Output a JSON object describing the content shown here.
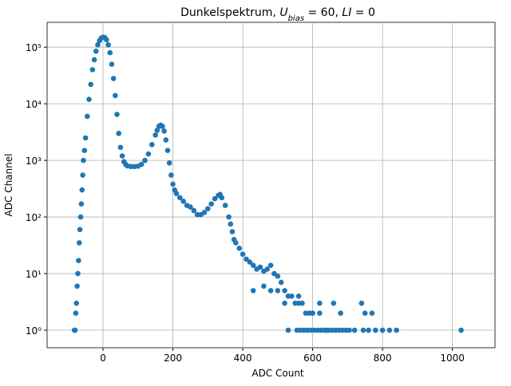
{
  "chart_data": {
    "type": "scatter",
    "title": [
      "Dunkelspektrum, ",
      "U",
      "bias",
      " = 60, ",
      "LI",
      " = 0"
    ],
    "x_label": "ADC Count",
    "y_label": "ADC Channel",
    "color": "#1f77b4",
    "grid": true,
    "y_log": true,
    "xlim": [
      -160,
      1122
    ],
    "ylim": [
      0.49,
      275000
    ],
    "xticks": [
      0,
      200,
      400,
      600,
      800,
      1000
    ],
    "yticks": [
      {
        "value": 1,
        "label": "10⁰"
      },
      {
        "value": 10,
        "label": "10¹"
      },
      {
        "value": 100,
        "label": "10²"
      },
      {
        "value": 1000,
        "label": "10³"
      },
      {
        "value": 10000,
        "label": "10⁴"
      },
      {
        "value": 100000,
        "label": "10⁵"
      }
    ],
    "series": [
      {
        "name": "ADC Channel",
        "x": [
          -82,
          -80,
          -78,
          -76,
          -74,
          -72,
          -70,
          -68,
          -66,
          -64,
          -62,
          -60,
          -58,
          -56,
          -53,
          -50,
          -45,
          -40,
          -35,
          -30,
          -25,
          -20,
          -15,
          -10,
          -5,
          0,
          5,
          10,
          15,
          20,
          25,
          30,
          35,
          40,
          45,
          50,
          55,
          60,
          65,
          70,
          80,
          90,
          100,
          110,
          120,
          130,
          140,
          150,
          155,
          160,
          165,
          170,
          175,
          180,
          185,
          190,
          195,
          200,
          205,
          210,
          220,
          230,
          240,
          250,
          260,
          270,
          280,
          290,
          300,
          310,
          320,
          330,
          335,
          340,
          350,
          360,
          365,
          370,
          375,
          380,
          390,
          400,
          410,
          420,
          430,
          440,
          450,
          460,
          470,
          480,
          490,
          500,
          510,
          520,
          530,
          540,
          550,
          560,
          570,
          580,
          590,
          600,
          620,
          640,
          430,
          460,
          480,
          500,
          520,
          560,
          620,
          660,
          680,
          740,
          750,
          770,
          530,
          555,
          565,
          575,
          585,
          595,
          605,
          615,
          625,
          635,
          645,
          655,
          665,
          675,
          685,
          695,
          705,
          720,
          745,
          760,
          780,
          800,
          820,
          840,
          1025
        ],
        "values": [
          1,
          1,
          2,
          3,
          6,
          10,
          17,
          35,
          60,
          100,
          170,
          300,
          550,
          1000,
          1500,
          2500,
          6000,
          12000,
          22000,
          40000,
          60000,
          85000,
          110000,
          130000,
          145000,
          150000,
          148000,
          135000,
          110000,
          80000,
          50000,
          28000,
          14000,
          6500,
          3000,
          1700,
          1200,
          950,
          850,
          800,
          780,
          780,
          790,
          850,
          1000,
          1300,
          1900,
          2800,
          3400,
          4000,
          4200,
          4000,
          3300,
          2300,
          1500,
          900,
          550,
          380,
          300,
          260,
          220,
          190,
          160,
          150,
          130,
          110,
          110,
          120,
          140,
          170,
          210,
          240,
          250,
          220,
          160,
          100,
          75,
          55,
          40,
          35,
          28,
          22,
          18,
          16,
          14,
          12,
          13,
          11,
          12,
          14,
          10,
          9,
          7,
          5,
          4,
          4,
          3,
          3,
          3,
          2,
          2,
          2,
          2,
          1,
          5,
          6,
          5,
          5,
          3,
          4,
          3,
          3,
          2,
          3,
          2,
          2,
          1,
          1,
          1,
          1,
          1,
          1,
          1,
          1,
          1,
          1,
          1,
          1,
          1,
          1,
          1,
          1,
          1,
          1,
          1,
          1,
          1,
          1,
          1,
          1,
          1
        ]
      }
    ]
  }
}
